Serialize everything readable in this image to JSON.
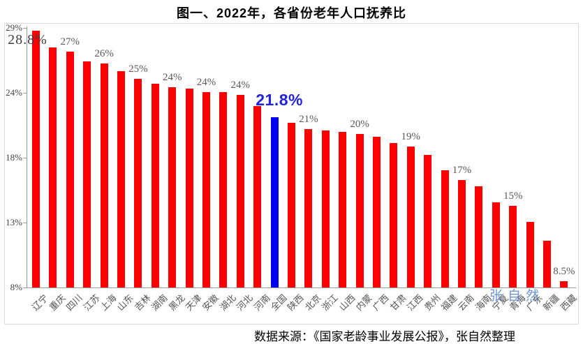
{
  "title": "图一、2022年，各省份老年人口抚养比",
  "source_line": "数据来源：《国家老龄事业发展公报》，张自然整理",
  "watermark": "张自然",
  "colors": {
    "bar_red": "#ff0000",
    "bar_highlight_blue": "#0000ee",
    "highlight_label_blue": "#2323dd",
    "data_label_gray": "#595959",
    "axis_text_gray": "#444444",
    "axis_line_gray": "#9a9a9a",
    "chart_border_gray": "#d9d9d9"
  },
  "chart_data": {
    "type": "bar",
    "title": "图一、2022年，各省份老年人口抚养比",
    "xlabel": "",
    "ylabel": "",
    "ylim": [
      8,
      29
    ],
    "grid": false,
    "legend": false,
    "y_ticks_top_to_bottom": [
      "29%",
      "24%",
      "18%",
      "13%",
      "8%"
    ],
    "categories": [
      "辽宁",
      "重庆",
      "四川",
      "江苏",
      "上海",
      "山东",
      "吉林",
      "湖南",
      "黑龙",
      "天津",
      "安徽",
      "湖北",
      "河北",
      "河南",
      "全国",
      "陕西",
      "北京",
      "浙江",
      "山西",
      "内蒙",
      "广西",
      "甘肃",
      "江西",
      "贵州",
      "福建",
      "云南",
      "海南",
      "宁夏",
      "青海",
      "广东",
      "新疆",
      "西藏"
    ],
    "values": [
      28.8,
      27.4,
      27.1,
      26.3,
      26.1,
      25.5,
      24.9,
      24.5,
      24.2,
      24.1,
      23.8,
      23.8,
      23.6,
      22.7,
      21.8,
      21.3,
      20.8,
      20.7,
      20.6,
      20.4,
      20.2,
      19.7,
      19.4,
      18.7,
      17.5,
      16.7,
      16.2,
      14.9,
      14.6,
      13.3,
      11.8,
      8.5
    ],
    "highlight_index": 14,
    "data_labels": [
      {
        "index": 0,
        "text": "28.8%",
        "style": "large"
      },
      {
        "index": 2,
        "text": "27%",
        "style": "normal"
      },
      {
        "index": 4,
        "text": "26%",
        "style": "normal"
      },
      {
        "index": 6,
        "text": "25%",
        "style": "normal"
      },
      {
        "index": 8,
        "text": "24%",
        "style": "normal"
      },
      {
        "index": 10,
        "text": "24%",
        "style": "normal"
      },
      {
        "index": 12,
        "text": "24%",
        "style": "normal"
      },
      {
        "index": 14,
        "text": "21.8%",
        "style": "highlight"
      },
      {
        "index": 16,
        "text": "21%",
        "style": "normal"
      },
      {
        "index": 19,
        "text": "20%",
        "style": "normal"
      },
      {
        "index": 22,
        "text": "19%",
        "style": "normal"
      },
      {
        "index": 25,
        "text": "17%",
        "style": "normal"
      },
      {
        "index": 28,
        "text": "15%",
        "style": "normal"
      },
      {
        "index": 31,
        "text": "8.5%",
        "style": "normal"
      }
    ]
  }
}
